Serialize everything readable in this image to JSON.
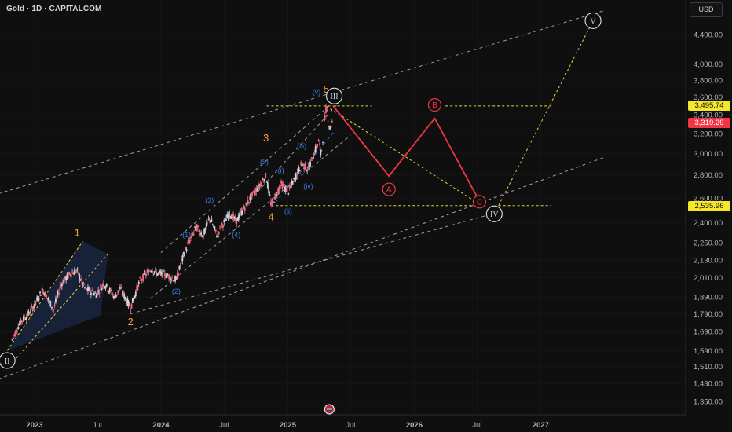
{
  "header": {
    "title": "Gold · 1D · CAPITALCOM",
    "currency": "USD"
  },
  "colors": {
    "background": "#0f0f0f",
    "axis_text": "#b2b5be",
    "channel_dashed": "#9a9ea8",
    "blue_dashed": "#2962ff",
    "yellow_dashed": "#e6d43a",
    "projection_red": "#f23645",
    "wave_orange": "#f7a534",
    "wave_blue": "#3b7be6",
    "wave_white": "#d1d4dc",
    "candle_up": "#d1d4dc",
    "candle_down": "#f06b7a",
    "channel_fill": "#1b2a4a"
  },
  "price_tags": {
    "resistance": "3,495.74",
    "current": "3,319.29",
    "support": "2,535.96"
  },
  "chart_data": {
    "type": "candlestick",
    "log_scale": true,
    "x_ticks": [
      "2023",
      "Jul",
      "2024",
      "Jul",
      "2025",
      "Jul",
      "2026",
      "Jul",
      "2027"
    ],
    "y_ticks": [
      "4,400.00",
      "4,000.00",
      "3,800.00",
      "3,600.00",
      "3,400.00",
      "3,200.00",
      "3,000.00",
      "2,800.00",
      "2,600.00",
      "2,400.00",
      "2,250.00",
      "2,130.00",
      "2,010.00",
      "1,890.00",
      "1,790.00",
      "1,690.00",
      "1,590.00",
      "1,510.00",
      "1,430.00",
      "1,350.00"
    ],
    "close_path": [
      [
        "2022-10-28",
        1645
      ],
      [
        "2022-11-20",
        1740
      ],
      [
        "2022-12-20",
        1800
      ],
      [
        "2023-01-25",
        1935
      ],
      [
        "2023-02-25",
        1815
      ],
      [
        "2023-03-20",
        1975
      ],
      [
        "2023-04-13",
        2035
      ],
      [
        "2023-05-04",
        2055
      ],
      [
        "2023-05-25",
        1945
      ],
      [
        "2023-06-28",
        1905
      ],
      [
        "2023-07-20",
        1975
      ],
      [
        "2023-08-20",
        1890
      ],
      [
        "2023-09-05",
        1940
      ],
      [
        "2023-10-05",
        1825
      ],
      [
        "2023-11-01",
        1990
      ],
      [
        "2023-12-04",
        2070
      ],
      [
        "2023-12-20",
        2040
      ],
      [
        "2024-01-15",
        2030
      ],
      [
        "2024-02-14",
        1995
      ],
      [
        "2024-03-08",
        2175
      ],
      [
        "2024-04-12",
        2370
      ],
      [
        "2024-05-02",
        2300
      ],
      [
        "2024-05-20",
        2440
      ],
      [
        "2024-06-10",
        2310
      ],
      [
        "2024-07-17",
        2475
      ],
      [
        "2024-08-05",
        2410
      ],
      [
        "2024-09-20",
        2620
      ],
      [
        "2024-10-30",
        2790
      ],
      [
        "2024-11-14",
        2540
      ],
      [
        "2024-12-12",
        2720
      ],
      [
        "2025-01-02",
        2650
      ],
      [
        "2025-02-10",
        2900
      ],
      [
        "2025-03-01",
        2850
      ],
      [
        "2025-04-01",
        3130
      ],
      [
        "2025-04-07",
        2970
      ],
      [
        "2025-04-22",
        3495
      ],
      [
        "2025-05-02",
        3240
      ],
      [
        "2025-05-09",
        3319
      ]
    ],
    "projection": {
      "points": [
        [
          "2025-05-12",
          3495.74
        ],
        [
          "2025-10-20",
          2790
        ],
        [
          "2026-03-01",
          3360
        ],
        [
          "2026-07-15",
          2535.96
        ]
      ],
      "labels": [
        "A",
        "B",
        "C"
      ]
    },
    "horizontal_levels": [
      3495.74,
      2535.96
    ],
    "wave_labels": [
      {
        "text": "1",
        "color": "orange",
        "date": "2023-05-04",
        "price": 2300
      },
      {
        "text": "2",
        "color": "orange",
        "date": "2023-10-05",
        "price": 1725
      },
      {
        "text": "3",
        "color": "orange",
        "date": "2024-10-30",
        "price": 3120
      },
      {
        "text": "4",
        "color": "orange",
        "date": "2024-11-14",
        "price": 2420
      },
      {
        "text": "5",
        "color": "orange",
        "date": "2025-04-22",
        "price": 3650
      },
      {
        "text": "(1)",
        "color": "blue",
        "date": "2024-03-15",
        "price": 2290
      },
      {
        "text": "(2)",
        "color": "blue",
        "date": "2024-02-14",
        "price": 1910
      },
      {
        "text": "(3)",
        "color": "blue",
        "date": "2024-05-20",
        "price": 2560
      },
      {
        "text": "(4)",
        "color": "blue",
        "date": "2024-08-05",
        "price": 2290
      },
      {
        "text": "(5)",
        "color": "blue",
        "date": "2024-10-25",
        "price": 2900
      },
      {
        "text": "(i)",
        "color": "blue",
        "date": "2024-12-12",
        "price": 2820
      },
      {
        "text": "(ii)",
        "color": "blue",
        "date": "2025-01-02",
        "price": 2470
      },
      {
        "text": "(iii)",
        "color": "blue",
        "date": "2025-02-10",
        "price": 3050
      },
      {
        "text": "(iv)",
        "color": "blue",
        "date": "2025-03-01",
        "price": 2680
      },
      {
        "text": "(v)",
        "color": "blue",
        "date": "2025-03-25",
        "price": 3630
      }
    ],
    "circled_labels": [
      {
        "text": "II",
        "date": "2022-10-14",
        "price": 1540
      },
      {
        "text": "III",
        "date": "2025-05-15",
        "price": 3610
      },
      {
        "text": "IV",
        "date": "2026-08-20",
        "price": 2470
      },
      {
        "text": "V",
        "date": "2027-06-01",
        "price": 4600
      }
    ]
  }
}
